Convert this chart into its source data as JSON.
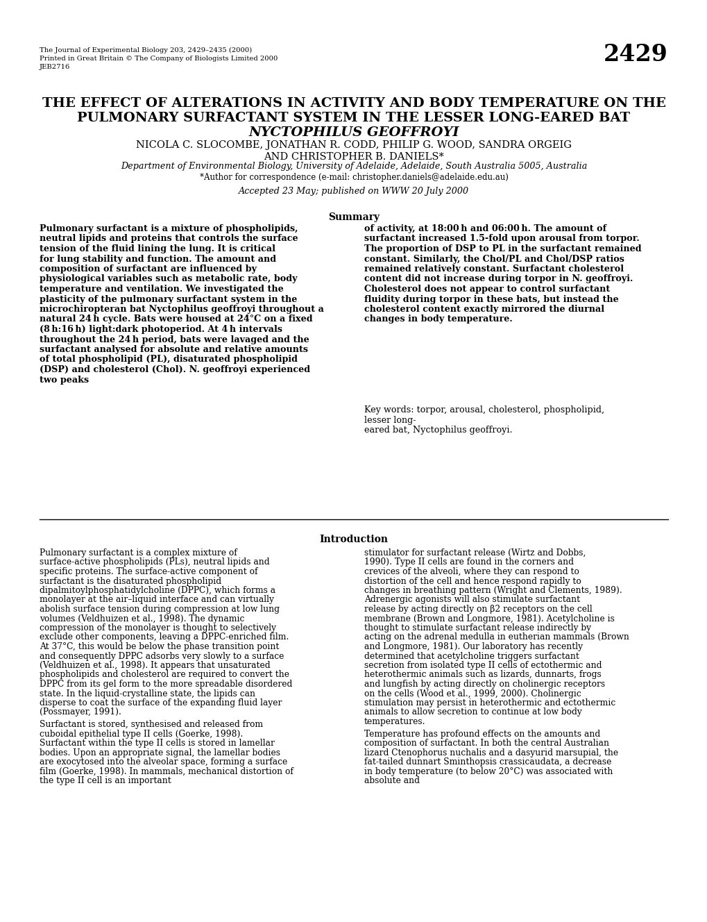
{
  "background_color": "#ffffff",
  "page_number": "2429",
  "journal_info_line1": "The Journal of Experimental Biology 203, 2429–2435 (2000)",
  "journal_info_line2": "Printed in Great Britain © The Company of Biologists Limited 2000",
  "journal_info_line3": "JEB2716",
  "title_line1": "THE EFFECT OF ALTERATIONS IN ACTIVITY AND BODY TEMPERATURE ON THE",
  "title_line2": "PULMONARY SURFACTANT SYSTEM IN THE LESSER LONG-EARED BAT",
  "title_line3": "NYCTOPHILUS GEOFFROYI",
  "authors_line1": "NICOLA C. SLOCOMBE, JONATHAN R. CODD, PHILIP G. WOOD, SANDRA ORGEIG",
  "authors_line2": "AND CHRISTOPHER B. DANIELS*",
  "affiliation": "Department of Environmental Biology, University of Adelaide, Adelaide, South Australia 5005, Australia",
  "correspondence": "*Author for correspondence (e-mail: christopher.daniels@adelaide.edu.au)",
  "accepted": "Accepted 23 May; published on WWW 20 July 2000",
  "summary_heading": "Summary",
  "summary_left_bold": "   Pulmonary surfactant is a mixture of phospholipids, neutral lipids and proteins that controls the surface tension of the fluid lining the lung. It is critical for lung stability and function. The amount and composition of surfactant are influenced by physiological variables such as metabolic rate, body temperature and ventilation. We investigated the plasticity of the pulmonary surfactant system in the microchiropteran bat Nyctophilus geoffroyi throughout a natural 24 h cycle. Bats were housed at 24°C on a fixed (8 h:16 h) light:dark photoperiod. At 4 h intervals throughout the 24 h period, bats were lavaged and the surfactant analysed for absolute and relative amounts of total phospholipid (PL), disaturated phospholipid (DSP) and cholesterol (Chol). N. geoffroyi experienced two peaks",
  "summary_right_bold": "of activity, at 18:00 h and 06:00 h. The amount of surfactant increased 1.5-fold upon arousal from torpor. The proportion of DSP to PL in the surfactant remained constant. Similarly, the Chol/PL and Chol/DSP ratios remained relatively constant. Surfactant cholesterol content did not increase during torpor in N. geoffroyi. Cholesterol does not appear to control surfactant fluidity during torpor in these bats, but instead the cholesterol content exactly mirrored the diurnal changes in body temperature.",
  "keywords": "Key words: torpor, arousal, cholesterol, phospholipid, lesser long-\neared bat, Nyctophilus geoffroyi.",
  "intro_heading": "Introduction",
  "intro_left_p1": "   Pulmonary surfactant is a complex mixture of surface-active phospholipids (PLs), neutral lipids and specific proteins. The surface-active component of surfactant is the disaturated phospholipid dipalmitoylphosphatidylcholine (DPPC), which forms a monolayer at the air–liquid interface and can virtually abolish surface tension during compression at low lung volumes (Veldhuizen et al., 1998). The dynamic compression of the monolayer is thought to selectively exclude other components, leaving a DPPC-enriched film. At 37°C, this would be below the phase transition point and consequently DPPC adsorbs very slowly to a surface (Veldhuizen et al., 1998). It appears that unsaturated phospholipids and cholesterol are required to convert the DPPC from its gel form to the more spreadable disordered state. In the liquid-crystalline state, the lipids can disperse to coat the surface of the expanding fluid layer (Possmayer, 1991).",
  "intro_left_p2": "   Surfactant is stored, synthesised and released from cuboidal epithelial type II cells (Goerke, 1998). Surfactant within the type II cells is stored in lamellar bodies. Upon an appropriate signal, the lamellar bodies are exocytosed into the alveolar space, forming a surface film (Goerke, 1998). In mammals, mechanical distortion of the type II cell is an important",
  "intro_right_p1": "stimulator for surfactant release (Wirtz and Dobbs, 1990). Type II cells are found in the corners and crevices of the alveoli, where they can respond to distortion of the cell and hence respond rapidly to changes in breathing pattern (Wright and Clements, 1989). Adrenergic agonists will also stimulate surfactant release by acting directly on β2 receptors on the cell membrane (Brown and Longmore, 1981). Acetylcholine is thought to stimulate surfactant release indirectly by acting on the adrenal medulla in eutherian mammals (Brown and Longmore, 1981). Our laboratory has recently determined that acetylcholine triggers surfactant secretion from isolated type II cells of ectothermic and heterothermic animals such as lizards, dunnarts, frogs and lungfish by acting directly on cholinergic receptors on the cells (Wood et al., 1999, 2000). Cholinergic stimulation may persist in heterothermic and ectothermic animals to allow secretion to continue at low body temperatures.",
  "intro_right_p2": "   Temperature has profound effects on the amounts and composition of surfactant. In both the central Australian lizard Ctenophorus nuchalis and a dasyurid marsupial, the fat-tailed dunnart Sminthopsis crassicaudata, a decrease in body temperature (to below 20°C) was associated with absolute and"
}
